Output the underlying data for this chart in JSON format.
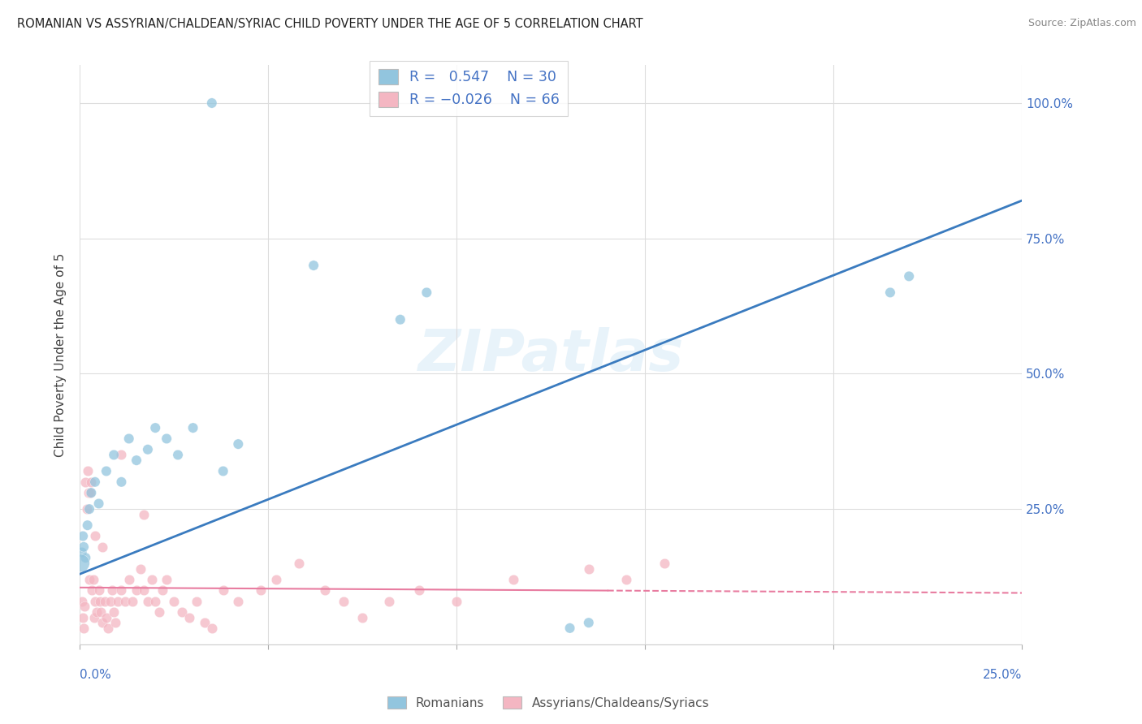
{
  "title": "ROMANIAN VS ASSYRIAN/CHALDEAN/SYRIAC CHILD POVERTY UNDER THE AGE OF 5 CORRELATION CHART",
  "source": "Source: ZipAtlas.com",
  "ylabel": "Child Poverty Under the Age of 5",
  "legend_label1": "Romanians",
  "legend_label2": "Assyrians/Chaldeans/Syriacs",
  "blue_color": "#92c5de",
  "pink_color": "#f4b6c2",
  "blue_line_color": "#3a7bbf",
  "pink_line_color": "#e87ca0",
  "watermark": "ZIPatlas",
  "background": "#ffffff",
  "romanian_x": [
    0.05,
    0.08,
    0.1,
    0.15,
    0.2,
    0.25,
    0.3,
    0.4,
    0.5,
    0.7,
    0.9,
    1.1,
    1.3,
    1.5,
    1.8,
    2.0,
    2.3,
    2.6,
    3.0,
    3.5,
    3.8,
    4.2,
    6.2,
    8.5,
    9.2,
    13.0,
    13.5,
    21.5,
    22.0,
    0.02
  ],
  "romanian_y": [
    17,
    20,
    18,
    16,
    22,
    25,
    28,
    30,
    26,
    32,
    35,
    30,
    38,
    34,
    36,
    40,
    38,
    35,
    40,
    100,
    32,
    37,
    70,
    60,
    65,
    3,
    4,
    65,
    68,
    15
  ],
  "romanian_size": [
    80,
    80,
    80,
    80,
    80,
    80,
    80,
    80,
    80,
    80,
    80,
    80,
    80,
    80,
    80,
    80,
    80,
    80,
    80,
    80,
    80,
    80,
    80,
    80,
    80,
    80,
    80,
    80,
    80,
    250
  ],
  "assyrian_x": [
    0.05,
    0.08,
    0.1,
    0.12,
    0.15,
    0.18,
    0.2,
    0.22,
    0.25,
    0.28,
    0.3,
    0.32,
    0.35,
    0.38,
    0.4,
    0.45,
    0.5,
    0.52,
    0.55,
    0.6,
    0.65,
    0.7,
    0.75,
    0.8,
    0.85,
    0.9,
    0.95,
    1.0,
    1.1,
    1.2,
    1.3,
    1.4,
    1.5,
    1.6,
    1.7,
    1.8,
    1.9,
    2.0,
    2.1,
    2.2,
    2.3,
    2.5,
    2.7,
    2.9,
    3.1,
    3.3,
    3.5,
    3.8,
    4.2,
    4.8,
    5.2,
    5.8,
    6.5,
    7.0,
    7.5,
    8.2,
    9.0,
    10.0,
    11.5,
    13.5,
    14.5,
    15.5,
    0.4,
    0.6,
    1.1,
    1.7
  ],
  "assyrian_y": [
    8,
    5,
    3,
    7,
    30,
    25,
    32,
    28,
    12,
    28,
    30,
    10,
    12,
    5,
    8,
    6,
    10,
    8,
    6,
    4,
    8,
    5,
    3,
    8,
    10,
    6,
    4,
    8,
    10,
    8,
    12,
    8,
    10,
    14,
    10,
    8,
    12,
    8,
    6,
    10,
    12,
    8,
    6,
    5,
    8,
    4,
    3,
    10,
    8,
    10,
    12,
    15,
    10,
    8,
    5,
    8,
    10,
    8,
    12,
    14,
    12,
    15,
    20,
    18,
    35,
    24
  ],
  "blue_trendline": [
    0,
    25,
    13,
    82
  ],
  "pink_trendline": [
    0,
    25,
    10.5,
    9.5
  ],
  "pink_dashed_start": 14.0,
  "xlim": [
    0,
    25
  ],
  "ylim": [
    0,
    107
  ],
  "ytick_vals": [
    0,
    25,
    50,
    75,
    100
  ],
  "ytick_labels": [
    "",
    "25.0%",
    "50.0%",
    "75.0%",
    "100.0%"
  ],
  "xtick_vals": [
    0,
    5,
    10,
    15,
    20,
    25
  ]
}
